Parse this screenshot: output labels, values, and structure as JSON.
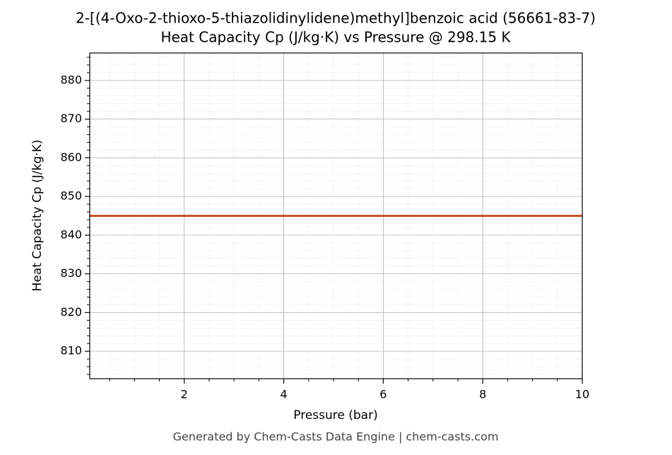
{
  "chart_data": {
    "type": "line",
    "title": "2-[(4-Oxo-2-thioxo-5-thiazolidinylidene)methyl]benzoic acid (56661-83-7)",
    "subtitle": "Heat Capacity Cp (J/kg·K) vs Pressure @ 298.15 K",
    "x_label": "Pressure (bar)",
    "y_label": "Heat Capacity Cp (J/kg·K)",
    "footer": "Generated by Chem-Casts Data Engine | chem-casts.com",
    "x": [
      0.1,
      10
    ],
    "series": [
      {
        "name": "Cp",
        "color": "#c8552a",
        "values": [
          845,
          845
        ]
      }
    ],
    "xlim": [
      0.1,
      10
    ],
    "ylim": [
      802.9,
      887.1
    ],
    "xticks": [
      2,
      4,
      6,
      8,
      10
    ],
    "yticks": [
      810,
      820,
      830,
      840,
      850,
      860,
      870,
      880
    ],
    "xminorticks": [
      0.5,
      1,
      1.5,
      2.5,
      3,
      3.5,
      4.5,
      5,
      5.5,
      6.5,
      7,
      7.5,
      8.5,
      9,
      9.5
    ],
    "yminorticks": [
      804,
      806,
      808,
      812,
      814,
      816,
      818,
      822,
      824,
      826,
      828,
      832,
      834,
      836,
      838,
      842,
      844,
      846,
      848,
      852,
      854,
      856,
      858,
      862,
      864,
      866,
      868,
      872,
      874,
      876,
      878,
      882,
      884,
      886
    ],
    "grid": true
  }
}
